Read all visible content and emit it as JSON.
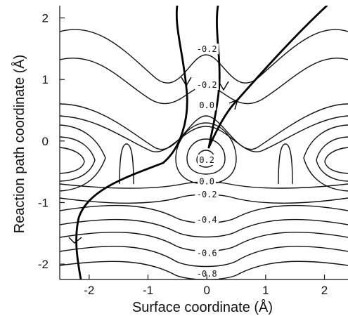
{
  "chart_data": {
    "type": "contour",
    "xlabel": "Surface coordinate (Å)",
    "ylabel": "Reaction path coordinate (Å)",
    "xlim": [
      -2.5,
      2.4
    ],
    "ylim": [
      -2.25,
      2.2
    ],
    "x_ticks": [
      -2,
      -1,
      0,
      1,
      2
    ],
    "y_ticks": [
      -2,
      -1,
      0,
      1,
      2
    ],
    "x_tick_labels": [
      "-2",
      "-1",
      "0",
      "1",
      "2"
    ],
    "y_tick_labels": [
      "-2",
      "-1",
      "0",
      "1",
      "2"
    ],
    "grid": false,
    "contour_labels": [
      {
        "text": "-0.2",
        "x": 0.0,
        "y": 1.49
      },
      {
        "text": "-0.2",
        "x": 0.0,
        "y": 0.91
      },
      {
        "text": "0.0",
        "x": 0.0,
        "y": 0.58
      },
      {
        "text": "0.2",
        "x": 0.0,
        "y": -0.31
      },
      {
        "text": "0.0",
        "x": 0.0,
        "y": -0.66
      },
      {
        "text": "-0.2",
        "x": 0.0,
        "y": -0.87
      },
      {
        "text": "-0.4",
        "x": 0.0,
        "y": -1.28
      },
      {
        "text": "-0.6",
        "x": 0.0,
        "y": -1.82
      },
      {
        "text": "-0.8",
        "x": 0.0,
        "y": -2.16
      }
    ]
  }
}
